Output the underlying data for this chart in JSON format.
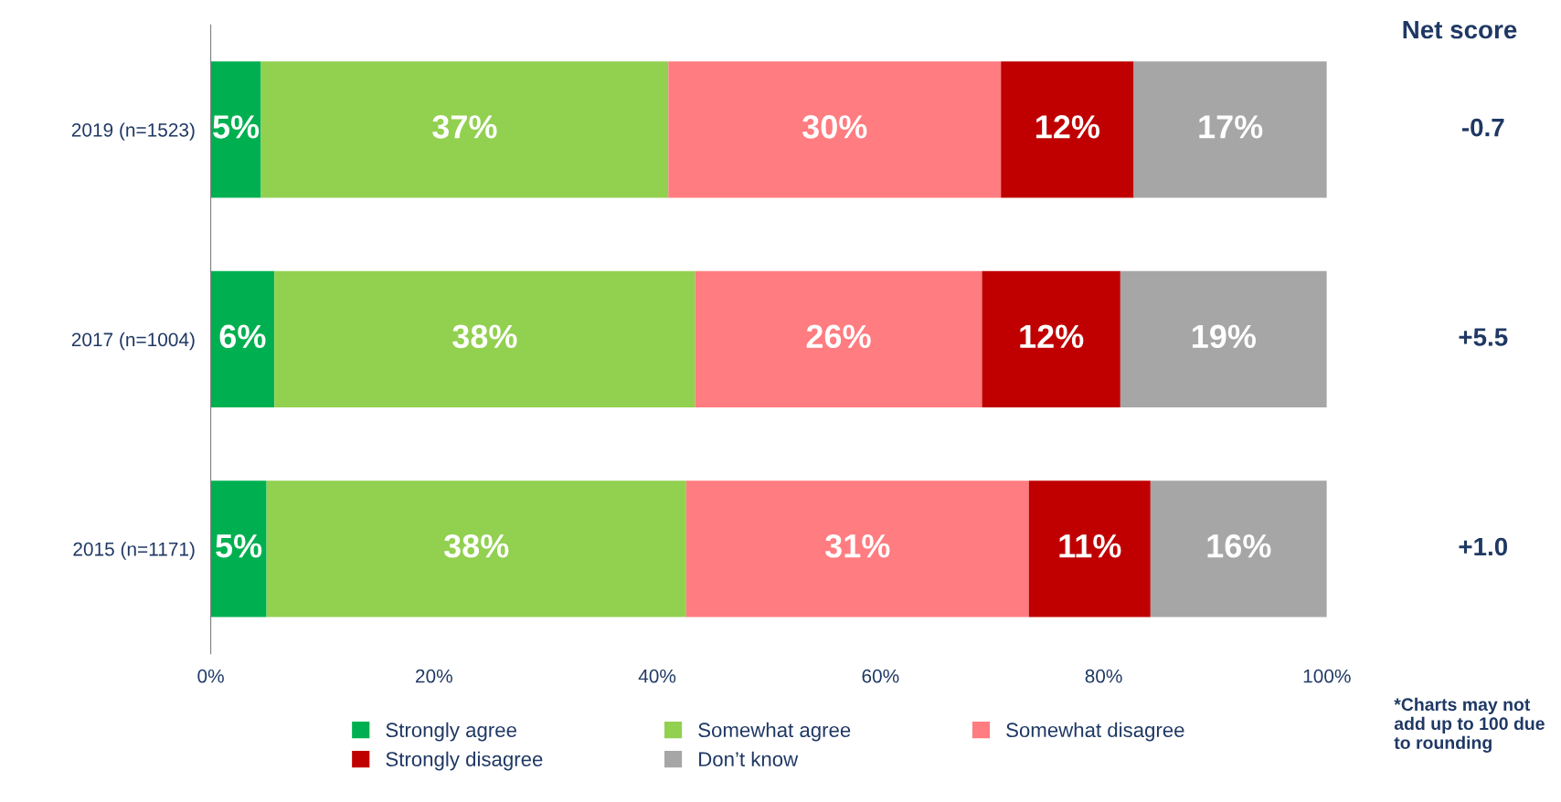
{
  "chart_data": {
    "type": "bar",
    "orientation": "horizontal",
    "stacked": true,
    "categories": [
      "2019 (n=1523)",
      "2017 (n=1004)",
      "2015 (n=1171)"
    ],
    "series": [
      {
        "name": "Strongly agree",
        "color": "#00b050",
        "values": [
          4.5,
          5.7,
          5.0
        ],
        "value_labels": [
          "5%",
          "6%",
          "5%"
        ]
      },
      {
        "name": "Somewhat agree",
        "color": "#92d050",
        "values": [
          36.5,
          37.7,
          37.6
        ],
        "value_labels": [
          "37%",
          "38%",
          "38%"
        ]
      },
      {
        "name": "Somewhat disagree",
        "color": "#ff7c80",
        "values": [
          29.8,
          25.7,
          30.7
        ],
        "value_labels": [
          "30%",
          "26%",
          "31%"
        ]
      },
      {
        "name": "Strongly disagree",
        "color": "#c00000",
        "values": [
          11.9,
          12.4,
          10.9
        ],
        "value_labels": [
          "12%",
          "12%",
          "11%"
        ]
      },
      {
        "name": "Don’t know",
        "color": "#a6a6a6",
        "values": [
          17.3,
          18.5,
          15.8
        ],
        "value_labels": [
          "17%",
          "19%",
          "16%"
        ]
      }
    ],
    "xlim": [
      0,
      100
    ],
    "xticks": [
      {
        "value": 0,
        "label": "0%"
      },
      {
        "value": 20,
        "label": "20%"
      },
      {
        "value": 40,
        "label": "40%"
      },
      {
        "value": 60,
        "label": "60%"
      },
      {
        "value": 80,
        "label": "80%"
      },
      {
        "value": 100,
        "label": "100%"
      }
    ],
    "grid": false,
    "legend": "bottom",
    "annotations": [
      "Net score",
      "-0.7",
      "+5.5",
      "+1.0",
      "*Charts may not add up to 100 due to rounding"
    ]
  }
}
